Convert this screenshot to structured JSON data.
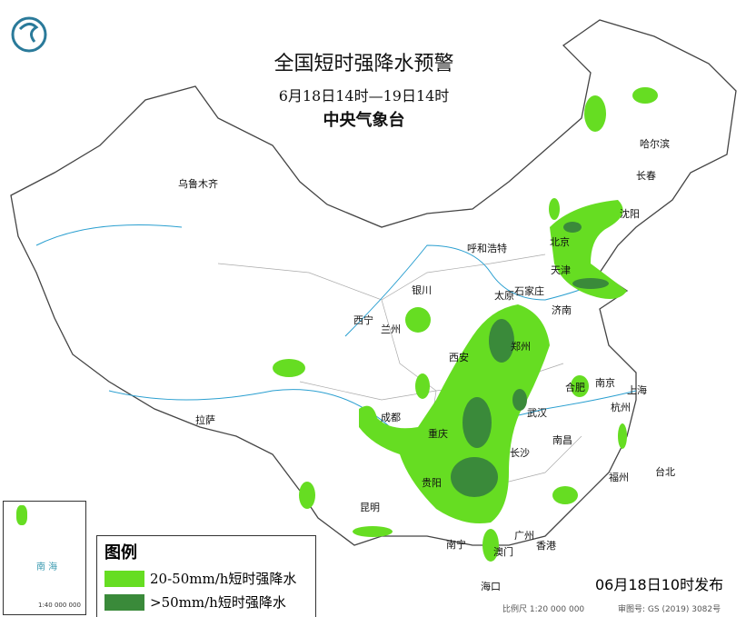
{
  "header": {
    "title": "全国短时强降水预警",
    "period": "6月18日14时—19日14时",
    "issuer": "中央气象台"
  },
  "logo_icon": "cma-logo-icon",
  "cities": [
    "乌鲁木齐",
    "哈尔滨",
    "长春",
    "沈阳",
    "呼和浩特",
    "北京",
    "天津",
    "银川",
    "太原",
    "石家庄",
    "济南",
    "西宁",
    "兰州",
    "西安",
    "郑州",
    "南京",
    "合肥",
    "上海",
    "杭州",
    "武汉",
    "成都",
    "重庆",
    "拉萨",
    "长沙",
    "南昌",
    "福州",
    "台北",
    "贵阳",
    "昆明",
    "广州",
    "南宁",
    "澳门",
    "香港",
    "海口"
  ],
  "legend": {
    "title": "图例",
    "items": [
      {
        "label": "20-50mm/h短时强降水",
        "color": "#66dd22"
      },
      {
        "label": ">50mm/h短时强降水",
        "color": "#3a8a3a"
      }
    ]
  },
  "footer": {
    "issued": "06月18日10时发布",
    "scale": "比例尺 1:20 000 000",
    "map_number": "审图号: GS (2019) 3082号"
  },
  "inset": {
    "sea": "南 海",
    "scale": "1:40 000 000"
  }
}
